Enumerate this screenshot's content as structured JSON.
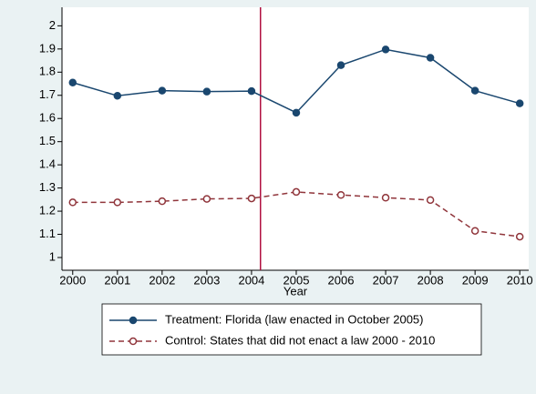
{
  "chart_data": {
    "type": "line",
    "xlabel": "Year",
    "x": [
      2000,
      2001,
      2002,
      2003,
      2004,
      2005,
      2006,
      2007,
      2008,
      2009,
      2010
    ],
    "series": [
      {
        "name": "Treatment: Florida (law enacted in October 2005)",
        "color": "#1a476f",
        "dash": false,
        "marker": "filled",
        "values": [
          1.755,
          1.698,
          1.72,
          1.716,
          1.718,
          1.625,
          1.83,
          1.898,
          1.862,
          1.72,
          1.665
        ]
      },
      {
        "name": "Control: States that did not enact a law 2000 - 2010",
        "color": "#90353b",
        "dash": true,
        "marker": "hollow",
        "values": [
          1.238,
          1.238,
          1.243,
          1.253,
          1.255,
          1.283,
          1.27,
          1.258,
          1.248,
          1.115,
          1.09
        ]
      }
    ],
    "xlim": [
      1999.76,
      2010.2
    ],
    "xticks": [
      2000,
      2001,
      2002,
      2003,
      2004,
      2005,
      2006,
      2007,
      2008,
      2009,
      2010
    ],
    "ylim": [
      0.945,
      2.08
    ],
    "yticks": [
      1,
      1.1,
      1.2,
      1.3,
      1.4,
      1.5,
      1.6,
      1.7,
      1.8,
      1.9,
      2
    ],
    "vline": 2004.2,
    "vline_color": "#b01040",
    "grid": false,
    "legend": "bottom"
  }
}
